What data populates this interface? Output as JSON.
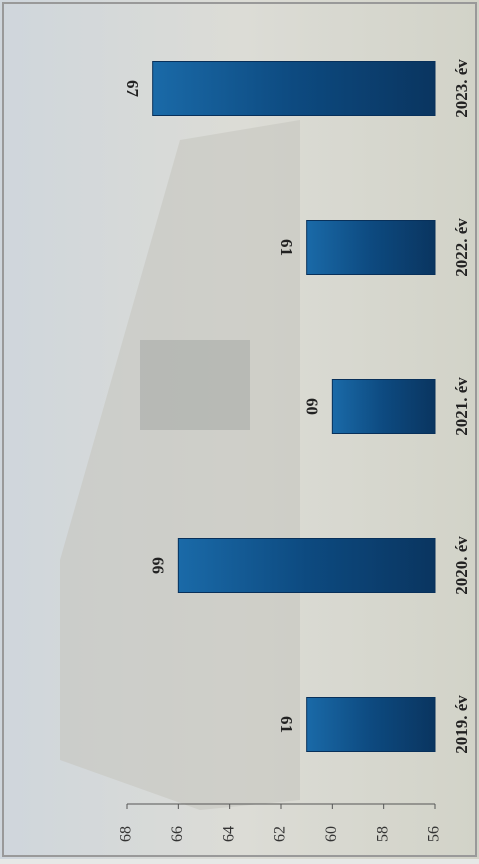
{
  "chart_data": {
    "type": "bar",
    "categories": [
      "2019. év",
      "2020. év",
      "2021. év",
      "2022. év",
      "2023. év"
    ],
    "values": [
      61,
      66,
      60,
      61,
      67
    ],
    "color": "#0d4a80",
    "ylim": [
      56,
      68
    ],
    "yticks": [
      56,
      58,
      60,
      62,
      64,
      66,
      68
    ]
  }
}
